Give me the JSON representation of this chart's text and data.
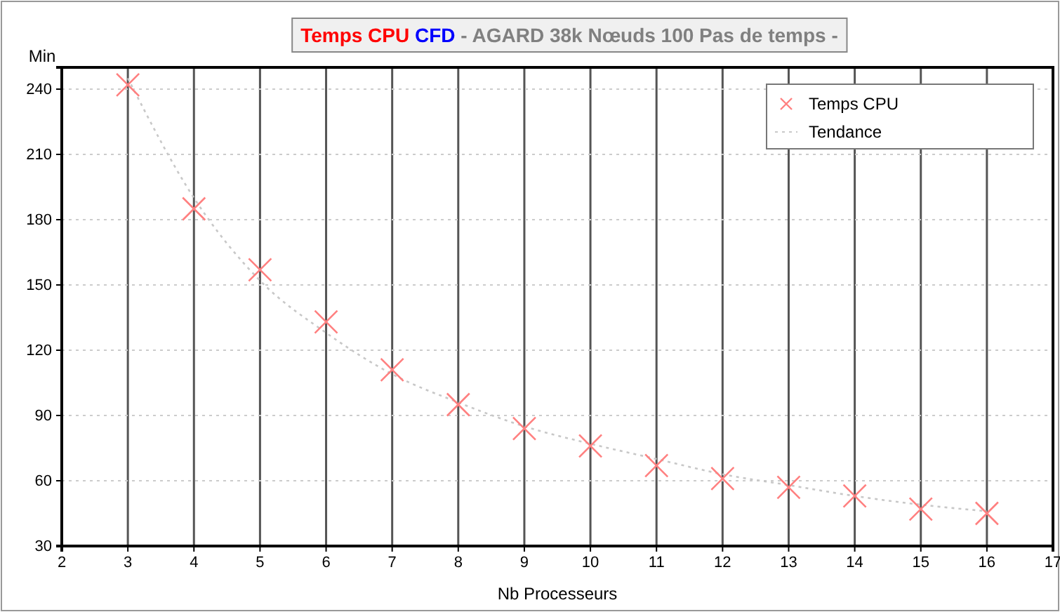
{
  "chart_data": {
    "type": "scatter",
    "title": "Temps CPU CFD - AGARD 38k Nœuds 100 Pas de temps -",
    "xlabel": "Nb Processeurs",
    "ylabel": "Min",
    "xlim": [
      2,
      17
    ],
    "xticks": [
      2,
      3,
      4,
      5,
      6,
      7,
      8,
      9,
      10,
      11,
      12,
      13,
      14,
      15,
      16,
      17
    ],
    "ylim": [
      30,
      250
    ],
    "yticks": [
      30,
      60,
      90,
      120,
      150,
      180,
      210,
      240
    ],
    "grid": true,
    "legend": "top right",
    "series": [
      {
        "name": "Temps CPU",
        "marker": "cross",
        "color": "#ff8080",
        "x": [
          3,
          4,
          5,
          6,
          7,
          8,
          9,
          10,
          11,
          12,
          13,
          14,
          15,
          16
        ],
        "values": [
          242,
          185,
          157,
          133,
          111,
          95,
          84,
          76,
          67,
          61,
          57,
          53,
          47,
          45
        ]
      },
      {
        "name": "Tendance",
        "type": "line",
        "line_style": "dotted",
        "color": "#c8c8c8",
        "x": [
          3,
          4,
          5,
          6,
          7,
          8,
          9,
          10,
          11,
          12,
          13,
          14,
          15,
          16
        ],
        "values": [
          245,
          190,
          152,
          128,
          109,
          96,
          85,
          77,
          70,
          63,
          58,
          53,
          49,
          46
        ]
      }
    ]
  }
}
